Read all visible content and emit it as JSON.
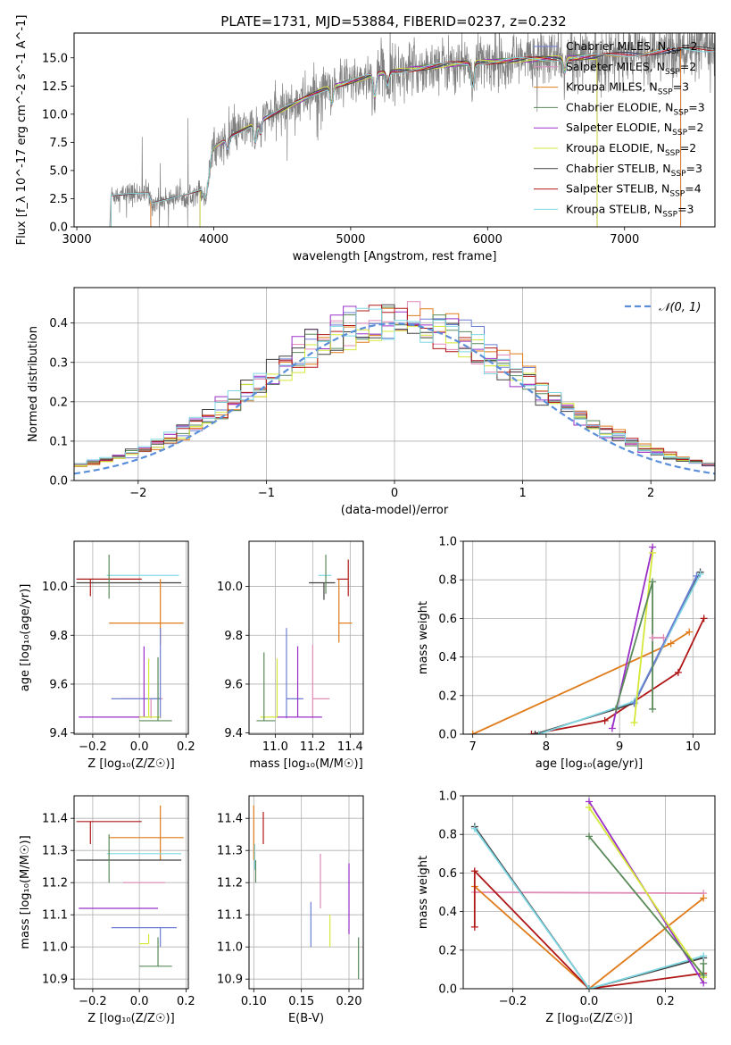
{
  "title": "PLATE=1731, MJD=53884, FIBERID=0237, z=0.232",
  "colors": {
    "Chabrier MILES": "#6b7fd6",
    "Salpeter MILES": "#e08ab8",
    "Kroupa MILES": "#e07b1a",
    "Chabrier ELODIE": "#5a8a5a",
    "Salpeter ELODIE": "#9b30c8",
    "Kroupa ELODIE": "#d4e838",
    "Chabrier STELIB": "#404040",
    "Salpeter STELIB": "#b01818",
    "Kroupa STELIB": "#7fd8e4",
    "data": "#808080",
    "gaussian": "#5b8fd9"
  },
  "chart_data": [
    {
      "id": "spectrum",
      "type": "line",
      "xlabel": "wavelength [Angstrom, rest frame]",
      "ylabel": "Flux [f_λ 10^-17 erg cm^-2 s^-1 A^-1]",
      "xlim": [
        2980,
        7660
      ],
      "ylim": [
        0,
        17.2
      ],
      "xticks": [
        "3000",
        "4000",
        "5000",
        "6000",
        "7000"
      ],
      "yticks": [
        "0.0",
        "2.5",
        "5.0",
        "7.5",
        "10.0",
        "12.5",
        "15.0"
      ],
      "legend_position": "top-right",
      "legend": [
        {
          "model": "Chabrier MILES",
          "nssp": "2"
        },
        {
          "model": "Salpeter MILES",
          "nssp": "2"
        },
        {
          "model": "Kroupa MILES",
          "nssp": "3"
        },
        {
          "model": "Chabrier ELODIE",
          "nssp": "3"
        },
        {
          "model": "Salpeter ELODIE",
          "nssp": "2"
        },
        {
          "model": "Kroupa ELODIE",
          "nssp": "2"
        },
        {
          "model": "Chabrier STELIB",
          "nssp": "3"
        },
        {
          "model": "Salpeter STELIB",
          "nssp": "4"
        },
        {
          "model": "Kroupa STELIB",
          "nssp": "3"
        }
      ],
      "continuum_knots": [
        [
          3240,
          0
        ],
        [
          3250,
          2.8
        ],
        [
          3520,
          3.0
        ],
        [
          3550,
          2.1
        ],
        [
          3950,
          3.4
        ],
        [
          3970,
          6.8
        ],
        [
          4150,
          8.2
        ],
        [
          4400,
          9.8
        ],
        [
          4800,
          12.2
        ],
        [
          5200,
          13.6
        ],
        [
          5700,
          14.4
        ],
        [
          6200,
          14.8
        ],
        [
          6800,
          15.1
        ],
        [
          7300,
          15.6
        ],
        [
          7660,
          15.8
        ]
      ],
      "model_ranges": {
        "MILES": [
          3540,
          7410
        ],
        "ELODIE": [
          3900,
          6800
        ],
        "STELIB": [
          3250,
          7660
        ]
      }
    },
    {
      "id": "residuals",
      "type": "histogram",
      "xlabel": "(data-model)/error",
      "ylabel": "Normed distribution",
      "xlim": [
        -2.5,
        2.5
      ],
      "ylim": [
        0,
        0.49
      ],
      "xticks": [
        "−2",
        "−1",
        "0",
        "1",
        "2"
      ],
      "yticks": [
        "0.0",
        "0.1",
        "0.2",
        "0.3",
        "0.4"
      ],
      "legend_position": "top-right",
      "legend_label": "𝒩(0, 1)",
      "bin_width": 0.1
    },
    {
      "id": "age_vs_Z",
      "type": "errorbar",
      "xlabel": "Z [log₁₀(Z/Z☉)]",
      "ylabel": "age  [log₁₀(age/yr)]",
      "xlim": [
        -0.28,
        0.21
      ],
      "ylim": [
        9.395,
        10.185
      ],
      "xticks": [
        "−0.2",
        "0.0",
        "0.2"
      ],
      "yticks": [
        "9.4",
        "9.6",
        "9.8",
        "10.0"
      ],
      "points": [
        {
          "model": "Chabrier STELIB",
          "x": 0.02,
          "xerr": [
            0.29,
            0.16
          ],
          "y": 10.015,
          "yerr": [
            0.0,
            0.0
          ]
        },
        {
          "model": "Kroupa STELIB",
          "x": 0.06,
          "xerr": [
            0.2,
            0.11
          ],
          "y": 10.045,
          "yerr": [
            0.0,
            0.0
          ]
        },
        {
          "model": "Salpeter STELIB",
          "x": -0.21,
          "xerr": [
            0.06,
            0.22
          ],
          "y": 10.03,
          "yerr": [
            0.07,
            0.0
          ]
        },
        {
          "model": "Chabrier ELODIE",
          "x": -0.13,
          "xerr": [
            0.0,
            0.0
          ],
          "y": 10.03,
          "yerr": [
            0.08,
            0.1
          ]
        },
        {
          "model": "Kroupa MILES",
          "x": 0.09,
          "xerr": [
            0.22,
            0.1
          ],
          "y": 9.85,
          "yerr": [
            0.09,
            0.18
          ]
        },
        {
          "model": "Salpeter MILES",
          "x": 0.05,
          "xerr": [
            0.13,
            0.05
          ],
          "y": 9.54,
          "yerr": [
            0.08,
            0.0
          ]
        },
        {
          "model": "Chabrier MILES",
          "x": 0.09,
          "xerr": [
            0.21,
            0.0
          ],
          "y": 9.54,
          "yerr": [
            0.08,
            0.29
          ]
        },
        {
          "model": "Salpeter ELODIE",
          "x": 0.02,
          "xerr": [
            0.28,
            0.02
          ],
          "y": 9.465,
          "yerr": [
            0.0,
            0.29
          ]
        },
        {
          "model": "Kroupa ELODIE",
          "x": 0.04,
          "xerr": [
            0.04,
            0.05
          ],
          "y": 9.465,
          "yerr": [
            0.0,
            0.24
          ]
        },
        {
          "model": "Chabrier ELODIE",
          "x": 0.08,
          "xerr": [
            0.08,
            0.06
          ],
          "y": 9.45,
          "yerr": [
            0.0,
            0.26
          ]
        }
      ]
    },
    {
      "id": "age_vs_mass",
      "type": "errorbar",
      "xlabel": "mass [log₁₀(M/M☉)]",
      "ylabel": "",
      "xlim": [
        10.86,
        11.47
      ],
      "ylim": [
        9.395,
        10.185
      ],
      "xticks": [
        "11.0",
        "11.2",
        "11.4"
      ],
      "yticks": [
        "9.4",
        "9.6",
        "9.8",
        "10.0"
      ],
      "points": [
        {
          "model": "Chabrier STELIB",
          "x": 11.26,
          "xerr": [
            0.08,
            0.06
          ],
          "y": 10.015,
          "yerr": [
            0.07,
            0.0
          ]
        },
        {
          "model": "Kroupa STELIB",
          "x": 11.3,
          "xerr": [
            0.07,
            0.0
          ],
          "y": 10.045,
          "yerr": [
            0.0,
            0.0
          ]
        },
        {
          "model": "Salpeter STELIB",
          "x": 11.39,
          "xerr": [
            0.06,
            0.0
          ],
          "y": 10.03,
          "yerr": [
            0.07,
            0.08
          ]
        },
        {
          "model": "Chabrier ELODIE",
          "x": 11.27,
          "xerr": [
            0.0,
            0.0
          ],
          "y": 10.03,
          "yerr": [
            0.06,
            0.1
          ]
        },
        {
          "model": "Kroupa MILES",
          "x": 11.34,
          "xerr": [
            0.0,
            0.07
          ],
          "y": 9.85,
          "yerr": [
            0.08,
            0.18
          ]
        },
        {
          "model": "Chabrier MILES",
          "x": 11.06,
          "xerr": [
            0.0,
            0.09
          ],
          "y": 9.54,
          "yerr": [
            0.08,
            0.29
          ]
        },
        {
          "model": "Salpeter MILES",
          "x": 11.2,
          "xerr": [
            0.0,
            0.09
          ],
          "y": 9.54,
          "yerr": [
            0.08,
            0.22
          ]
        },
        {
          "model": "Salpeter ELODIE",
          "x": 11.12,
          "xerr": [
            0.11,
            0.13
          ],
          "y": 9.465,
          "yerr": [
            0.0,
            0.29
          ]
        },
        {
          "model": "Kroupa ELODIE",
          "x": 11.01,
          "xerr": [
            0.09,
            0.0
          ],
          "y": 9.465,
          "yerr": [
            0.0,
            0.24
          ]
        },
        {
          "model": "Chabrier ELODIE",
          "x": 10.94,
          "xerr": [
            0.04,
            0.06
          ],
          "y": 9.45,
          "yerr": [
            0.0,
            0.28
          ]
        }
      ]
    },
    {
      "id": "weight_vs_age",
      "type": "line",
      "xlabel": "age  [log₁₀(age/yr)]",
      "ylabel": "mass weight",
      "xlim": [
        6.87,
        10.3
      ],
      "ylim": [
        0,
        1.0
      ],
      "xticks": [
        "7",
        "8",
        "9",
        "10"
      ],
      "yticks": [
        "0.0",
        "0.2",
        "0.4",
        "0.6",
        "0.8",
        "1.0"
      ],
      "series": [
        {
          "model": "Kroupa MILES",
          "points": [
            [
              7.0,
              0.0
            ],
            [
              9.7,
              0.47
            ],
            [
              9.95,
              0.53
            ]
          ]
        },
        {
          "model": "Salpeter STELIB",
          "points": [
            [
              7.8,
              0.0
            ],
            [
              8.8,
              0.07
            ],
            [
              9.8,
              0.32
            ],
            [
              10.15,
              0.6
            ]
          ]
        },
        {
          "model": "Chabrier STELIB",
          "points": [
            [
              7.85,
              0.0
            ],
            [
              9.2,
              0.16
            ],
            [
              10.1,
              0.84
            ]
          ]
        },
        {
          "model": "Kroupa STELIB",
          "points": [
            [
              7.9,
              0.0
            ],
            [
              9.2,
              0.17
            ],
            [
              10.1,
              0.83
            ]
          ]
        },
        {
          "model": "Chabrier MILES",
          "points": [
            [
              9.2,
              0.16
            ],
            [
              10.05,
              0.82
            ]
          ]
        },
        {
          "model": "Salpeter ELODIE",
          "points": [
            [
              8.9,
              0.03
            ],
            [
              9.45,
              0.97
            ]
          ]
        },
        {
          "model": "Kroupa ELODIE",
          "points": [
            [
              9.2,
              0.06
            ],
            [
              9.45,
              0.94
            ]
          ]
        },
        {
          "model": "Chabrier ELODIE",
          "points": [
            [
              8.95,
              0.13
            ],
            [
              9.45,
              0.79
            ],
            [
              9.45,
              0.13
            ]
          ]
        },
        {
          "model": "Salpeter MILES",
          "points": [
            [
              9.45,
              0.5
            ],
            [
              9.6,
              0.5
            ]
          ]
        }
      ]
    },
    {
      "id": "mass_vs_Z",
      "type": "errorbar",
      "xlabel": "Z [log₁₀(Z/Z☉)]",
      "ylabel": "mass [log₁₀(M/M☉)]",
      "xlim": [
        -0.28,
        0.21
      ],
      "ylim": [
        10.87,
        11.47
      ],
      "xticks": [
        "−0.2",
        "0.0",
        "0.2"
      ],
      "yticks": [
        "10.9",
        "11.0",
        "11.1",
        "11.2",
        "11.3",
        "11.4"
      ],
      "points": [
        {
          "model": "Salpeter STELIB",
          "x": -0.21,
          "xerr": [
            0.06,
            0.22
          ],
          "y": 11.39,
          "yerr": [
            0.07,
            0.0
          ]
        },
        {
          "model": "Kroupa MILES",
          "x": 0.09,
          "xerr": [
            0.22,
            0.1
          ],
          "y": 11.34,
          "yerr": [
            0.07,
            0.1
          ]
        },
        {
          "model": "Kroupa STELIB",
          "x": 0.06,
          "xerr": [
            0.2,
            0.12
          ],
          "y": 11.29,
          "yerr": [
            0.0,
            0.0
          ]
        },
        {
          "model": "Chabrier STELIB",
          "x": 0.02,
          "xerr": [
            0.29,
            0.16
          ],
          "y": 11.27,
          "yerr": [
            0.0,
            0.0
          ]
        },
        {
          "model": "Chabrier ELODIE",
          "x": -0.13,
          "xerr": [
            0.0,
            0.0
          ],
          "y": 11.27,
          "yerr": [
            0.07,
            0.08
          ]
        },
        {
          "model": "Salpeter MILES",
          "x": 0.05,
          "xerr": [
            0.12,
            0.06
          ],
          "y": 11.2,
          "yerr": [
            0.0,
            0.0
          ]
        },
        {
          "model": "Salpeter ELODIE",
          "x": 0.02,
          "xerr": [
            0.28,
            0.06
          ],
          "y": 11.12,
          "yerr": [
            0.0,
            0.0
          ]
        },
        {
          "model": "Chabrier MILES",
          "x": 0.09,
          "xerr": [
            0.21,
            0.07
          ],
          "y": 11.06,
          "yerr": [
            0.06,
            0.0
          ]
        },
        {
          "model": "Kroupa ELODIE",
          "x": 0.04,
          "xerr": [
            0.04,
            0.0
          ],
          "y": 11.01,
          "yerr": [
            0.0,
            0.03
          ]
        },
        {
          "model": "Chabrier ELODIE",
          "x": 0.08,
          "xerr": [
            0.08,
            0.06
          ],
          "y": 10.94,
          "yerr": [
            0.0,
            0.09
          ]
        }
      ]
    },
    {
      "id": "mass_vs_ebv",
      "type": "errorbar",
      "xlabel": "E(B-V)",
      "ylabel": "",
      "xlim": [
        0.095,
        0.215
      ],
      "ylim": [
        10.87,
        11.47
      ],
      "xticks": [
        "0.10",
        "0.15",
        "0.20"
      ],
      "yticks": [
        "10.9",
        "11.0",
        "11.1",
        "11.2",
        "11.3",
        "11.4"
      ],
      "points": [
        {
          "model": "Kroupa MILES",
          "x": 0.1,
          "y": 11.34,
          "yerr": [
            0.07,
            0.1
          ]
        },
        {
          "model": "Salpeter STELIB",
          "x": 0.11,
          "y": 11.39,
          "yerr": [
            0.07,
            0.03
          ]
        },
        {
          "model": "Kroupa STELIB",
          "x": 0.101,
          "y": 11.29,
          "yerr": [
            0.05,
            0.03
          ]
        },
        {
          "model": "Chabrier ELODIE",
          "x": 0.102,
          "y": 11.27,
          "yerr": [
            0.07,
            0.0
          ]
        },
        {
          "model": "Salpeter MILES",
          "x": 0.17,
          "y": 11.2,
          "yerr": [
            0.08,
            0.09
          ]
        },
        {
          "model": "Chabrier MILES",
          "x": 0.16,
          "y": 11.06,
          "yerr": [
            0.06,
            0.08
          ]
        },
        {
          "model": "Salpeter ELODIE",
          "x": 0.2,
          "y": 11.12,
          "yerr": [
            0.08,
            0.14
          ]
        },
        {
          "model": "Kroupa ELODIE",
          "x": 0.18,
          "y": 11.01,
          "yerr": [
            0.01,
            0.09
          ]
        },
        {
          "model": "Chabrier ELODIE",
          "x": 0.21,
          "y": 10.94,
          "yerr": [
            0.04,
            0.09
          ]
        }
      ]
    },
    {
      "id": "weight_vs_Z",
      "type": "line",
      "xlabel": "Z [log₁₀(Z/Z☉)]",
      "ylabel": "mass weight",
      "xlim": [
        -0.33,
        0.33
      ],
      "ylim": [
        0,
        1.0
      ],
      "xticks": [
        "−0.2",
        "0.0",
        "0.2"
      ],
      "yticks": [
        "0.0",
        "0.2",
        "0.4",
        "0.6",
        "0.8",
        "1.0"
      ],
      "series": [
        {
          "model": "Salpeter MILES",
          "points": [
            [
              -0.3,
              0.5
            ],
            [
              0.3,
              0.495
            ]
          ]
        },
        {
          "model": "Kroupa MILES",
          "points": [
            [
              -0.3,
              0.53
            ],
            [
              0.0,
              0.0
            ],
            [
              0.3,
              0.47
            ]
          ]
        },
        {
          "model": "Salpeter STELIB",
          "points": [
            [
              -0.3,
              0.32
            ],
            [
              -0.3,
              0.61
            ],
            [
              0.0,
              0.0
            ],
            [
              0.3,
              0.08
            ]
          ]
        },
        {
          "model": "Chabrier STELIB",
          "points": [
            [
              -0.3,
              0.84
            ],
            [
              0.0,
              0.0
            ],
            [
              0.3,
              0.16
            ]
          ]
        },
        {
          "model": "Kroupa STELIB",
          "points": [
            [
              -0.3,
              0.83
            ],
            [
              0.0,
              0.0
            ],
            [
              0.3,
              0.17
            ]
          ]
        },
        {
          "model": "Salpeter ELODIE",
          "points": [
            [
              0.0,
              0.97
            ],
            [
              0.3,
              0.03
            ]
          ]
        },
        {
          "model": "Kroupa ELODIE",
          "points": [
            [
              0.0,
              0.94
            ],
            [
              0.3,
              0.06
            ]
          ]
        },
        {
          "model": "Chabrier ELODIE",
          "points": [
            [
              0.0,
              0.79
            ],
            [
              0.3,
              0.07
            ],
            [
              0.3,
              0.13
            ]
          ]
        }
      ]
    }
  ]
}
